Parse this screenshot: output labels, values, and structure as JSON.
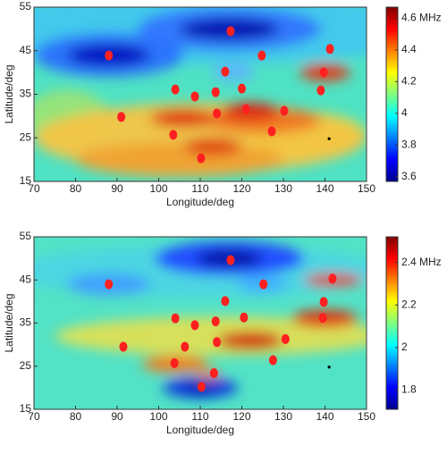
{
  "chart_data": [
    {
      "type": "scatter",
      "xlabel": "Longitude/deg",
      "ylabel": "Latitude/deg",
      "xlim": [
        70,
        150
      ],
      "ylim": [
        15,
        55
      ],
      "xticks": [
        70,
        80,
        90,
        100,
        110,
        120,
        130,
        140,
        150
      ],
      "yticks": [
        15,
        25,
        35,
        45,
        55
      ],
      "x": [
        88,
        117.3,
        141.2,
        124.8,
        116,
        139.7,
        139,
        104,
        108.7,
        113.7,
        120,
        91,
        114,
        121,
        130.2,
        103.5,
        127.2,
        110.2
      ],
      "y": [
        43.9,
        49.5,
        45.4,
        43.9,
        40.2,
        40,
        35.9,
        36.1,
        34.5,
        35.5,
        36.3,
        29.8,
        30.6,
        31.6,
        31.2,
        25.7,
        26.5,
        20.3
      ],
      "color": "#ff2020",
      "marker_x": 141,
      "marker_y": 24.8,
      "marker_color": "#000000",
      "clim": [
        3.57,
        4.67
      ],
      "cticks": [
        3.6,
        3.8,
        4,
        4.2,
        4.4,
        {
          "value": 4.6,
          "label": "4.6 MHz"
        }
      ]
    },
    {
      "type": "scatter",
      "xlabel": "Longitude/deg",
      "ylabel": "Latitude/deg",
      "xlim": [
        70,
        150
      ],
      "ylim": [
        15,
        55
      ],
      "xticks": [
        70,
        80,
        90,
        100,
        110,
        120,
        130,
        140,
        150
      ],
      "yticks": [
        15,
        25,
        35,
        45,
        55
      ],
      "x": [
        88,
        117.3,
        141.8,
        125.2,
        116,
        139.7,
        139.5,
        104,
        108.7,
        113.7,
        120.5,
        91.5,
        114,
        106.3,
        130.5,
        103.8,
        127.5,
        110.3,
        113.3
      ],
      "y": [
        44,
        49.6,
        45.3,
        44,
        40.1,
        39.9,
        36.2,
        36.1,
        34.5,
        35.4,
        36.3,
        29.5,
        30.6,
        29.5,
        31.3,
        25.7,
        26.4,
        20.2,
        23.4
      ],
      "color": "#ff2020",
      "marker_x": 141,
      "marker_y": 24.8,
      "marker_color": "#000000",
      "clim": [
        1.71,
        2.52
      ],
      "cticks": [
        1.8,
        2,
        2.2,
        {
          "value": 2.4,
          "label": "2.4 MHz"
        }
      ]
    }
  ]
}
